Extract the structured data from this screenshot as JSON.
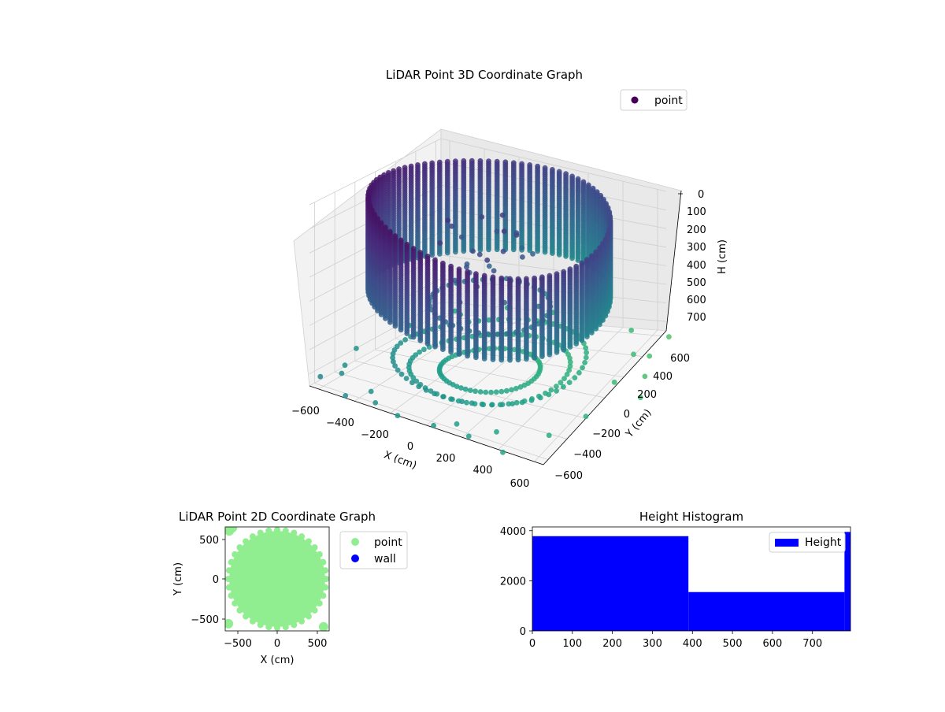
{
  "chart_data": [
    {
      "type": "scatter",
      "title": "LiDAR Point 3D Coordinate Graph",
      "xlabel": "X (cm)",
      "ylabel": "Y (cm)",
      "zlabel": "H (cm)",
      "xticks": [
        "−600",
        "−400",
        "−200",
        "0",
        "200",
        "400",
        "600"
      ],
      "yticks": [
        "−600",
        "−400",
        "−200",
        "0",
        "200",
        "400",
        "600"
      ],
      "zticks": [
        "0",
        "100",
        "200",
        "300",
        "400",
        "500",
        "600",
        "700"
      ],
      "xlim": [
        -650,
        650
      ],
      "ylim": [
        -650,
        650
      ],
      "zlim": [
        0,
        750
      ],
      "z_inverted": true,
      "colormap": "viridis",
      "legend": {
        "position": "top-right",
        "entries": [
          {
            "label": "point",
            "color": "#440154"
          }
        ]
      },
      "series": [
        {
          "name": "point",
          "shape": "cylinder-wall",
          "radius": 600,
          "height_range": [
            0,
            400
          ],
          "inner_floor_ring_radius": 300,
          "lower_rings": [
            {
              "radius": 480,
              "height": 680
            },
            {
              "radius": 400,
              "height": 720
            },
            {
              "radius": 250,
              "height": 730
            }
          ],
          "scatter_outliers": [
            [
              -640,
              -560,
              730
            ],
            [
              -600,
              -420,
              740
            ],
            [
              -540,
              600,
              720
            ],
            [
              -600,
              250,
              700
            ],
            [
              -450,
              -650,
              740
            ],
            [
              -300,
              -620,
              740
            ],
            [
              -160,
              -650,
              750
            ],
            [
              40,
              -650,
              740
            ],
            [
              230,
              -640,
              740
            ],
            [
              430,
              -660,
              750
            ],
            [
              560,
              -420,
              745
            ],
            [
              650,
              -200,
              740
            ],
            [
              640,
              120,
              735
            ],
            [
              620,
              360,
              720
            ],
            [
              520,
              520,
              690
            ],
            [
              300,
              600,
              700
            ],
            [
              0,
              640,
              700
            ],
            [
              -250,
              620,
              690
            ],
            [
              -440,
              480,
              695
            ],
            [
              700,
              380,
              730
            ],
            [
              760,
              220,
              740
            ],
            [
              820,
              60,
              750
            ],
            [
              720,
              550,
              720
            ],
            [
              -700,
              -100,
              730
            ],
            [
              -650,
              -300,
              745
            ],
            [
              -380,
              -520,
              740
            ],
            [
              120,
              -560,
              745
            ],
            [
              320,
              -520,
              745
            ]
          ]
        }
      ]
    },
    {
      "type": "scatter",
      "title": "LiDAR Point 2D Coordinate Graph",
      "xlabel": "X (cm)",
      "ylabel": "Y (cm)",
      "xticks": [
        "−500",
        "0",
        "500"
      ],
      "yticks": [
        "−500",
        "0",
        "500"
      ],
      "xlim": [
        -650,
        650
      ],
      "ylim": [
        -650,
        650
      ],
      "legend": {
        "position": "outside-right",
        "entries": [
          {
            "label": "point",
            "color": "#90ee90"
          },
          {
            "label": "wall",
            "color": "#0000ff"
          }
        ]
      },
      "series": [
        {
          "name": "point",
          "color": "#90ee90",
          "shape": "disk",
          "radius": 600
        }
      ]
    },
    {
      "type": "bar",
      "title": "Height Histogram",
      "xlabel": "",
      "ylabel": "",
      "xticks": [
        "0",
        "100",
        "200",
        "300",
        "400",
        "500",
        "600",
        "700"
      ],
      "yticks": [
        "0",
        "2000",
        "4000"
      ],
      "xlim": [
        0,
        795
      ],
      "ylim": [
        0,
        4150
      ],
      "legend": {
        "position": "top-right",
        "entries": [
          {
            "label": "Height",
            "color": "#0000ff"
          }
        ]
      },
      "series": [
        {
          "name": "Height",
          "color": "#0000ff",
          "bins": [
            {
              "x0": 0,
              "x1": 390,
              "count": 3780
            },
            {
              "x0": 390,
              "x1": 780,
              "count": 1550
            },
            {
              "x0": 780,
              "x1": 795,
              "count": 3950
            }
          ]
        }
      ]
    }
  ]
}
